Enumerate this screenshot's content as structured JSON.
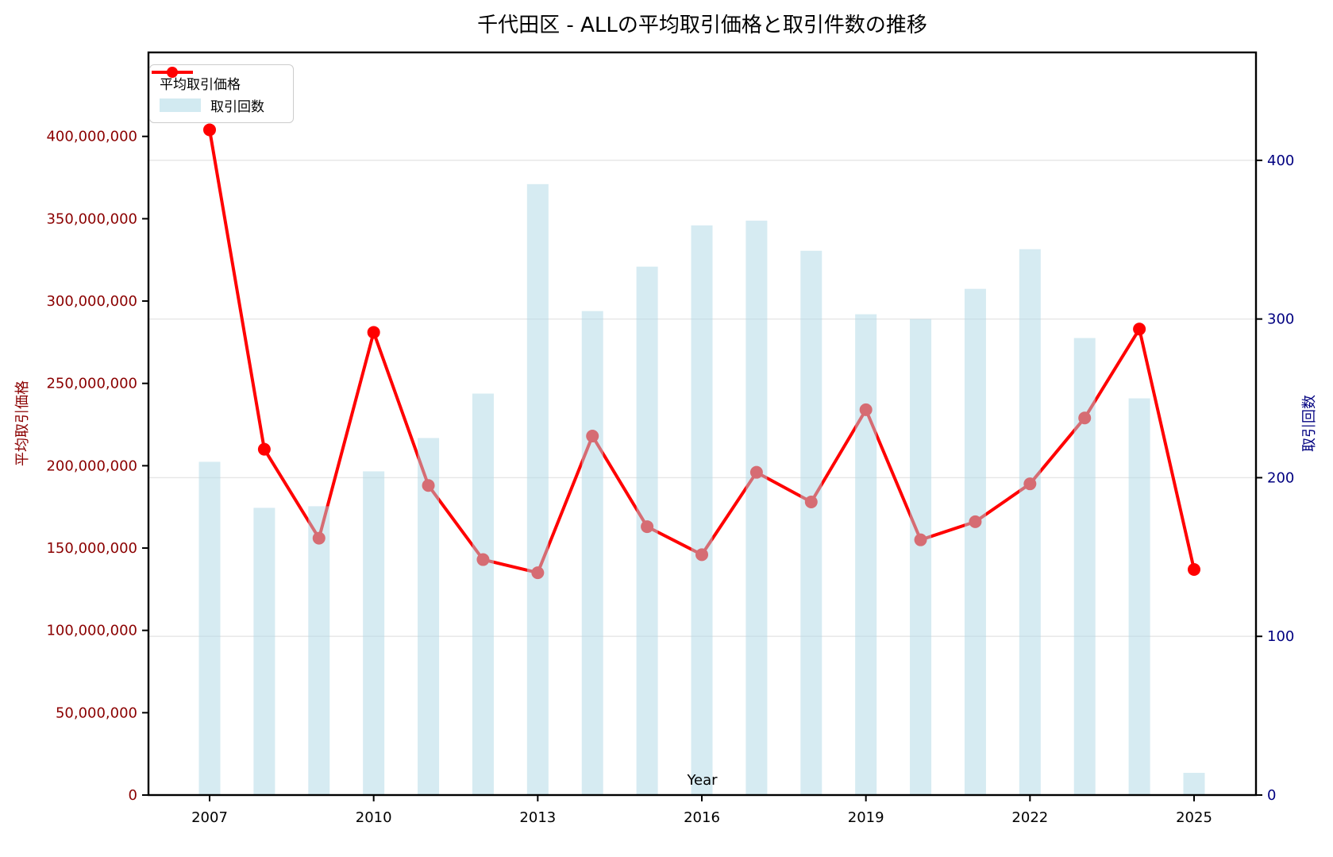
{
  "figure": {
    "title": "千代田区 - ALLの平均取引価格と取引件数の推移"
  },
  "axes": {
    "x_label": "Year",
    "y_left_label": "平均取引価格",
    "y_right_label": "取引回数",
    "x_tick_labels": [
      "2007",
      "2010",
      "2013",
      "2016",
      "2019",
      "2022",
      "2025"
    ],
    "y_left_tick_labels": [
      "0",
      "50,000,000",
      "100,000,000",
      "150,000,000",
      "200,000,000",
      "250,000,000",
      "300,000,000",
      "350,000,000",
      "400,000,000"
    ],
    "y_right_tick_labels": [
      "0",
      "100",
      "200",
      "300",
      "400"
    ]
  },
  "legend": {
    "items": [
      {
        "label": "平均取引価格",
        "marker": "red-line-with-circle"
      },
      {
        "label": "取引回数",
        "marker": "lightblue-rect"
      }
    ]
  },
  "colors": {
    "price_line": "#FF0000",
    "price_marker": "#FF0000",
    "bar_fill": "#ADD8E6",
    "bar_opacity": 0.5,
    "left_axis_text": "#8B0000",
    "right_axis_text": "#000080",
    "x_axis_text": "#000000",
    "grid": "#E6E6E6",
    "spine": "#000000"
  },
  "chart_data": {
    "type": "line+bar dual-axis",
    "title": "千代田区 - ALLの平均取引価格と取引件数の推移",
    "xlabel": "Year",
    "ylabel_left": "平均取引価格",
    "ylabel_right": "取引回数",
    "x": [
      2007,
      2008,
      2009,
      2010,
      2011,
      2012,
      2013,
      2014,
      2015,
      2016,
      2017,
      2018,
      2019,
      2020,
      2021,
      2022,
      2023,
      2024,
      2025
    ],
    "series": [
      {
        "name": "平均取引価格",
        "type": "line",
        "axis": "left",
        "color": "#FF0000",
        "values": [
          404000000,
          210000000,
          156000000,
          281000000,
          188000000,
          143000000,
          135000000,
          218000000,
          163000000,
          146000000,
          196000000,
          178000000,
          234000000,
          155000000,
          166000000,
          189000000,
          229000000,
          283000000,
          137000000
        ]
      },
      {
        "name": "取引回数",
        "type": "bar",
        "axis": "right",
        "color": "#ADD8E6",
        "opacity": 0.5,
        "values": [
          210,
          181,
          182,
          204,
          225,
          253,
          385,
          305,
          333,
          359,
          362,
          343,
          303,
          300,
          319,
          344,
          288,
          250,
          14
        ]
      }
    ],
    "ylim_left": [
      0,
      451000000
    ],
    "ylim_right": [
      0,
      468
    ],
    "y_left_ticks": [
      0,
      50000000,
      100000000,
      150000000,
      200000000,
      250000000,
      300000000,
      350000000,
      400000000
    ],
    "y_right_ticks": [
      0,
      100,
      200,
      300,
      400
    ],
    "x_ticks_shown": [
      2007,
      2010,
      2013,
      2016,
      2019,
      2022,
      2025
    ],
    "grid": "horizontal gridlines at right-axis ticks",
    "legend_position": "upper left"
  }
}
